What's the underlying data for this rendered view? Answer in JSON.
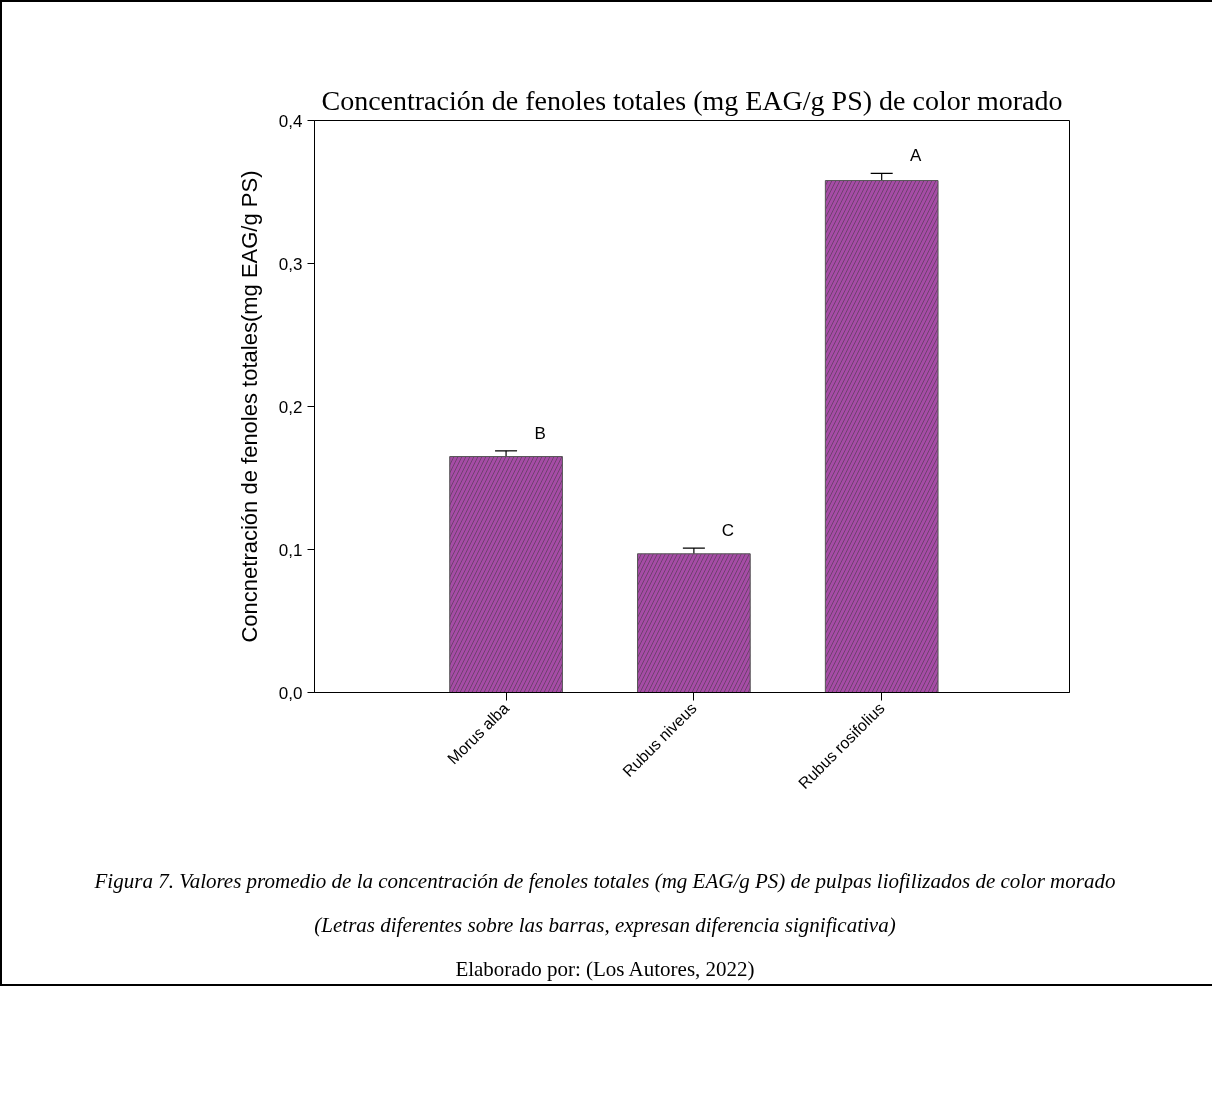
{
  "chart_data": {
    "type": "bar",
    "title": "Concentración de fenoles totales (mg EAG/g PS) de color morado",
    "ylabel": "Concnetración de fenoles totales(mg EAG/g PS)",
    "categories": [
      "Morus alba",
      "Rubus niveus",
      "Rubus rosifolius"
    ],
    "values": [
      0.165,
      0.097,
      0.358
    ],
    "errors": [
      0.004,
      0.004,
      0.005
    ],
    "color": "#a64ca6",
    "ylim": [
      0,
      0.4
    ],
    "yticks": [
      {
        "value": 0,
        "label": "0,0"
      },
      {
        "value": 0.1,
        "label": "0,1"
      },
      {
        "value": 0.2,
        "label": "0,2"
      },
      {
        "value": 0.3,
        "label": "0,3"
      },
      {
        "value": 0.4,
        "label": "0,4"
      }
    ],
    "grid": false,
    "annotations": [
      "B",
      "C",
      "A",
      "Figura 7. Valores promedio de la concentración de fenoles totales (mg EAG/g PS) de pulpas liofilizados de color morado",
      "(Letras diferentes sobre las barras, expresan diferencia significativa)",
      "Elaborado por: (Los Autores, 2022)"
    ]
  }
}
